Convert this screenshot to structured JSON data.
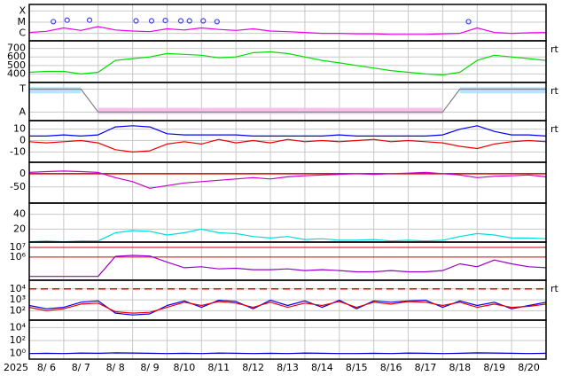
{
  "chart_data": [
    {
      "type": "line",
      "log": true,
      "xlim": [
        6,
        21
      ],
      "ylim": [
        2.15e-07,
        0.00038
      ],
      "yticks": [
        {
          "value": 0.0001,
          "label": "X"
        },
        {
          "value": 1e-05,
          "label": "M"
        },
        {
          "value": 1e-06,
          "label": "C"
        }
      ],
      "x": [
        6,
        6.5,
        7,
        7.5,
        8,
        8.5,
        9,
        9.5,
        10,
        10.5,
        11,
        11.5,
        12,
        12.5,
        13,
        13.5,
        14,
        14.5,
        15,
        15.5,
        16,
        16.5,
        17,
        17.5,
        18,
        18.5,
        19,
        19.5,
        20,
        20.5,
        21
      ],
      "series": [
        {
          "color": "#ee00ee",
          "values": [
            1.2e-06,
            1.5e-06,
            3e-06,
            1.8e-06,
            4e-06,
            2e-06,
            1.6e-06,
            1.4e-06,
            2.5e-06,
            2e-06,
            3e-06,
            2.2e-06,
            1.8e-06,
            2.5e-06,
            1.6e-06,
            1.4e-06,
            1.2e-06,
            1e-06,
            1e-06,
            9e-07,
            9e-07,
            8e-07,
            8e-07,
            8e-07,
            9e-07,
            1e-06,
            3e-06,
            1.2e-06,
            1e-06,
            1.1e-06,
            1.2e-06
          ]
        },
        {
          "color": "#4040ff",
          "style": "markers",
          "x": [
            6.7,
            7.1,
            7.75,
            9.1,
            9.55,
            9.95,
            10.4,
            10.65,
            11.05,
            11.45,
            18.75
          ],
          "values": [
            1.1e-05,
            1.5e-05,
            1.5e-05,
            1.3e-05,
            1.3e-05,
            1.4e-05,
            1.3e-05,
            1.3e-05,
            1.3e-05,
            1.1e-05,
            1.1e-05
          ]
        }
      ]
    },
    {
      "type": "line",
      "xlim": [
        6,
        21
      ],
      "ylim": [
        300,
        790
      ],
      "yticks": [
        400,
        500,
        600,
        700
      ],
      "side_label": "rt",
      "x": [
        6,
        6.5,
        7,
        7.5,
        8,
        8.5,
        9,
        9.5,
        10,
        10.5,
        11,
        11.5,
        12,
        12.5,
        13,
        13.5,
        14,
        14.5,
        15,
        15.5,
        16,
        16.5,
        17,
        17.5,
        18,
        18.5,
        19,
        19.5,
        20,
        20.5,
        21
      ],
      "series": [
        {
          "color": "#00dd00",
          "values": [
            420,
            430,
            430,
            400,
            420,
            560,
            580,
            600,
            640,
            630,
            620,
            590,
            600,
            650,
            660,
            640,
            600,
            560,
            530,
            500,
            470,
            440,
            420,
            400,
            390,
            420,
            560,
            620,
            600,
            580,
            560
          ]
        }
      ]
    },
    {
      "type": "line",
      "xlim": [
        6,
        21
      ],
      "ylim": [
        -1.75,
        1.58
      ],
      "yticks": [
        {
          "value": 1,
          "label": "T"
        },
        {
          "value": -1,
          "label": "A"
        }
      ],
      "side_label": "rt",
      "x": [
        6,
        6.5,
        7,
        7.5,
        8,
        8.5,
        9,
        9.5,
        10,
        10.5,
        11,
        11.5,
        12,
        12.5,
        13,
        13.5,
        14,
        14.5,
        15,
        15.5,
        16,
        16.5,
        17,
        17.5,
        18,
        18.5,
        19,
        19.5,
        20,
        20.5,
        21
      ],
      "series": [
        {
          "color": "#a8e0ff",
          "style": "band",
          "values": [
            0.9,
            0.9,
            0.9,
            0.9,
            null,
            null,
            null,
            null,
            null,
            null,
            null,
            null,
            null,
            null,
            null,
            null,
            null,
            null,
            null,
            null,
            null,
            null,
            null,
            null,
            null,
            0.9,
            0.9,
            0.9,
            0.9,
            0.9,
            0.9
          ]
        },
        {
          "color": "#f5b8e8",
          "style": "band",
          "values": [
            null,
            null,
            null,
            null,
            -0.9,
            -0.9,
            -0.9,
            -0.9,
            -0.9,
            -0.9,
            -0.9,
            -0.9,
            -0.9,
            -0.9,
            -0.9,
            -0.9,
            -0.9,
            -0.9,
            -0.9,
            -0.9,
            -0.9,
            -0.9,
            -0.9,
            -0.9,
            -0.9,
            null,
            null,
            null,
            null,
            null,
            null
          ]
        },
        {
          "color": "#808080",
          "values": [
            1,
            1,
            1,
            1,
            -1,
            -1,
            -1,
            -1,
            -1,
            -1,
            -1,
            -1,
            -1,
            -1,
            -1,
            -1,
            -1,
            -1,
            -1,
            -1,
            -1,
            -1,
            -1,
            -1,
            -1,
            1,
            1,
            1,
            1,
            1,
            1
          ]
        }
      ]
    },
    {
      "type": "line",
      "xlim": [
        6,
        21
      ],
      "ylim": [
        -19,
        17.5
      ],
      "yticks": [
        10,
        0,
        -10
      ],
      "side_label": "rt",
      "x": [
        6,
        6.5,
        7,
        7.5,
        8,
        8.5,
        9,
        9.5,
        10,
        10.5,
        11,
        11.5,
        12,
        12.5,
        13,
        13.5,
        14,
        14.5,
        15,
        15.5,
        16,
        16.5,
        17,
        17.5,
        18,
        18.5,
        19,
        19.5,
        20,
        20.5,
        21
      ],
      "series": [
        {
          "color": "#0000ee",
          "values": [
            4,
            4,
            5,
            4,
            5,
            12,
            13,
            12,
            6,
            5,
            5,
            5,
            5,
            4,
            4,
            4,
            4,
            4,
            5,
            4,
            4,
            4,
            4,
            4,
            5,
            10,
            13,
            8,
            5,
            5,
            4
          ]
        },
        {
          "color": "#ee0000",
          "values": [
            -1,
            -2,
            -1,
            0,
            -2,
            -8,
            -10,
            -9,
            -3,
            -1,
            -3,
            1,
            -2,
            0,
            -2,
            1,
            -1,
            0,
            -1,
            0,
            1,
            -1,
            0,
            -1,
            -2,
            -5,
            -7,
            -3,
            -1,
            0,
            -1
          ]
        }
      ]
    },
    {
      "type": "line",
      "xlim": [
        6,
        21
      ],
      "ylim": [
        -111,
        43
      ],
      "yticks": [
        0,
        -50
      ],
      "threshold": 0,
      "threshold_color": "#d00000",
      "threshold_dashed": false,
      "x": [
        6,
        6.5,
        7,
        7.5,
        8,
        8.5,
        9,
        9.5,
        10,
        10.5,
        11,
        11.5,
        12,
        12.5,
        13,
        13.5,
        14,
        14.5,
        15,
        15.5,
        16,
        16.5,
        17,
        17.5,
        18,
        18.5,
        19,
        19.5,
        20,
        20.5,
        21
      ],
      "series": [
        {
          "color": "#cc00cc",
          "values": [
            5,
            8,
            10,
            8,
            5,
            -15,
            -30,
            -55,
            -45,
            -35,
            -30,
            -25,
            -20,
            -15,
            -20,
            -12,
            -8,
            -5,
            -3,
            0,
            -3,
            0,
            2,
            5,
            0,
            -5,
            -15,
            -10,
            -8,
            -5,
            -12
          ]
        }
      ]
    },
    {
      "type": "line",
      "xlim": [
        6,
        21
      ],
      "ylim": [
        2.5,
        55
      ],
      "yticks": [
        20,
        40
      ],
      "x": [
        6,
        6.5,
        7,
        7.5,
        8,
        8.5,
        9,
        9.5,
        10,
        10.5,
        11,
        11.5,
        12,
        12.5,
        13,
        13.5,
        14,
        14.5,
        15,
        15.5,
        16,
        16.5,
        17,
        17.5,
        18,
        18.5,
        19,
        19.5,
        20,
        20.5,
        21
      ],
      "series": [
        {
          "color": "#00dddd",
          "values": [
            3,
            4,
            3,
            4,
            4,
            15,
            18,
            17,
            12,
            15,
            20,
            15,
            14,
            10,
            8,
            10,
            6,
            7,
            5,
            5,
            6,
            4,
            5,
            4,
            5,
            10,
            14,
            12,
            8,
            8,
            7
          ]
        }
      ]
    },
    {
      "type": "line",
      "log": true,
      "xlim": [
        6,
        21
      ],
      "ylim": [
        4000,
        36000000.0
      ],
      "grid_color": "#d00000",
      "yticks": [
        {
          "value": 10000000,
          "label": "10⁷"
        },
        {
          "value": 1000000,
          "label": "10⁶"
        }
      ],
      "x": [
        6,
        6.5,
        7,
        7.5,
        8,
        8.5,
        9,
        9.5,
        10,
        10.5,
        11,
        11.5,
        12,
        12.5,
        13,
        13.5,
        14,
        14.5,
        15,
        15.5,
        16,
        16.5,
        17,
        17.5,
        18,
        18.5,
        19,
        19.5,
        20,
        20.5,
        21
      ],
      "series": [
        {
          "color": "#9900cc",
          "values": [
            10000,
            10000,
            10000,
            10000,
            10000,
            1200000,
            1500000,
            1300000,
            300000,
            80000,
            100000,
            60000,
            70000,
            50000,
            50000,
            60000,
            40000,
            50000,
            40000,
            30000,
            30000,
            40000,
            30000,
            30000,
            40000,
            200000,
            100000,
            500000,
            200000,
            100000,
            80000
          ]
        }
      ]
    },
    {
      "type": "line",
      "log": true,
      "xlim": [
        6,
        21
      ],
      "ylim": [
        13.5,
        63000
      ],
      "threshold": 10000,
      "threshold_color": "#e00000",
      "threshold_dashed": true,
      "side_label": "rt",
      "yticks": [
        {
          "value": 10000,
          "label": "10⁴"
        },
        {
          "value": 1000,
          "label": "10³"
        },
        {
          "value": 100,
          "label": "10²"
        }
      ],
      "x": [
        6,
        6.5,
        7,
        7.5,
        8,
        8.5,
        9,
        9.5,
        10,
        10.5,
        11,
        11.5,
        12,
        12.5,
        13,
        13.5,
        14,
        14.5,
        15,
        15.5,
        16,
        16.5,
        17,
        17.5,
        18,
        18.5,
        19,
        19.5,
        20,
        20.5,
        21
      ],
      "series": [
        {
          "color": "#0000ee",
          "values": [
            300,
            150,
            200,
            600,
            800,
            60,
            40,
            50,
            300,
            800,
            200,
            900,
            700,
            150,
            900,
            300,
            800,
            200,
            900,
            150,
            800,
            600,
            800,
            900,
            200,
            800,
            300,
            600,
            150,
            300,
            600
          ]
        },
        {
          "color": "#ee0000",
          "values": [
            200,
            100,
            150,
            400,
            500,
            80,
            60,
            70,
            200,
            600,
            300,
            700,
            500,
            200,
            600,
            200,
            500,
            300,
            700,
            200,
            600,
            400,
            700,
            600,
            300,
            600,
            200,
            400,
            200,
            250,
            400
          ]
        }
      ]
    },
    {
      "type": "line",
      "log": true,
      "xlim": [
        6,
        21
      ],
      "ylim": [
        0.138,
        138000
      ],
      "yticks": [
        {
          "value": 10000,
          "label": "10⁴"
        },
        {
          "value": 100,
          "label": "10²"
        },
        {
          "value": 1,
          "label": "10⁰"
        }
      ],
      "year": "2025",
      "xticks": [
        {
          "value": 6,
          "label": "8/ 6"
        },
        {
          "value": 7,
          "label": "8/ 7"
        },
        {
          "value": 8,
          "label": "8/ 8"
        },
        {
          "value": 9,
          "label": "8/ 9"
        },
        {
          "value": 10,
          "label": "8/10"
        },
        {
          "value": 11,
          "label": "8/11"
        },
        {
          "value": 12,
          "label": "8/12"
        },
        {
          "value": 13,
          "label": "8/13"
        },
        {
          "value": 14,
          "label": "8/14"
        },
        {
          "value": 15,
          "label": "8/15"
        },
        {
          "value": 16,
          "label": "8/16"
        },
        {
          "value": 17,
          "label": "8/17"
        },
        {
          "value": 18,
          "label": "8/18"
        },
        {
          "value": 19,
          "label": "8/19"
        },
        {
          "value": 20,
          "label": "8/20"
        }
      ],
      "x": [
        6,
        6.5,
        7,
        7.5,
        8,
        8.5,
        9,
        9.5,
        10,
        10.5,
        11,
        11.5,
        12,
        12.5,
        13,
        13.5,
        14,
        14.5,
        15,
        15.5,
        16,
        16.5,
        17,
        17.5,
        18,
        18.5,
        19,
        19.5,
        20,
        20.5,
        21
      ],
      "series": [
        {
          "color": "#0000cc",
          "values": [
            1,
            1.1,
            1,
            1.2,
            1.1,
            1.3,
            1.2,
            1.1,
            1,
            1.1,
            1,
            1.2,
            1.1,
            1,
            1.1,
            1,
            1.2,
            1.1,
            1,
            1,
            1.1,
            1,
            1.2,
            1.1,
            1,
            1.1,
            1.3,
            1.2,
            1.1,
            1,
            1.1
          ]
        }
      ]
    }
  ]
}
